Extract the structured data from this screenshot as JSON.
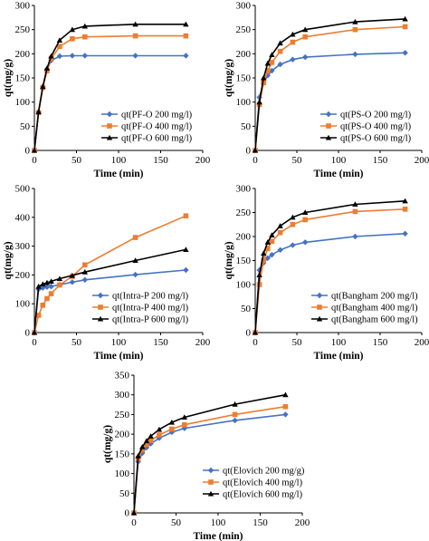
{
  "colors": {
    "series_200": "#4472C4",
    "series_400": "#ED7D31",
    "series_600": "#000000",
    "axis": "#000000",
    "grid": "none"
  },
  "chart_data": [
    {
      "type": "line",
      "xlabel": "Time (min)",
      "ylabel": "qt(mg/g)",
      "xlim": [
        0,
        200
      ],
      "ylim": [
        0,
        300
      ],
      "xticks": [
        "0",
        "50",
        "100",
        "150",
        "200"
      ],
      "yticks": [
        "0",
        "50",
        "100",
        "150",
        "200",
        "250",
        "300"
      ],
      "grid": false,
      "legend_position": "bottom-right",
      "series": [
        {
          "name": "qt(PF-O 200 mg/l)",
          "marker": "diamond",
          "x": [
            0,
            5,
            10,
            15,
            20,
            30,
            45,
            60,
            120,
            180
          ],
          "y": [
            0,
            80,
            132,
            168,
            186,
            195,
            196,
            196,
            196,
            196
          ]
        },
        {
          "name": "qt(PF-O 400 mg/l)",
          "marker": "square",
          "x": [
            0,
            5,
            10,
            15,
            20,
            30,
            45,
            60,
            120,
            180
          ],
          "y": [
            0,
            78,
            130,
            165,
            190,
            215,
            231,
            235,
            237,
            237
          ]
        },
        {
          "name": "qt(PF-O 600 mg/l)",
          "marker": "triangle",
          "x": [
            0,
            5,
            10,
            15,
            20,
            30,
            45,
            60,
            120,
            180
          ],
          "y": [
            0,
            80,
            132,
            170,
            195,
            228,
            250,
            257,
            261,
            261
          ]
        }
      ]
    },
    {
      "type": "line",
      "xlabel": "Time (min)",
      "ylabel": "qt(mg/g)",
      "xlim": [
        0,
        200
      ],
      "ylim": [
        0,
        300
      ],
      "xticks": [
        "0",
        "50",
        "100",
        "150",
        "200"
      ],
      "yticks": [
        "0",
        "50",
        "100",
        "150",
        "200",
        "250",
        "300"
      ],
      "grid": false,
      "legend_position": "bottom-right",
      "series": [
        {
          "name": "qt(PS-O 200 mg/l)",
          "marker": "diamond",
          "x": [
            0,
            5,
            10,
            15,
            20,
            30,
            45,
            60,
            120,
            180
          ],
          "y": [
            0,
            110,
            140,
            155,
            165,
            178,
            188,
            193,
            199,
            202
          ]
        },
        {
          "name": "qt(PS-O 400 mg/l)",
          "marker": "square",
          "x": [
            0,
            5,
            10,
            15,
            20,
            30,
            45,
            60,
            120,
            180
          ],
          "y": [
            0,
            95,
            140,
            165,
            182,
            205,
            224,
            235,
            250,
            256
          ]
        },
        {
          "name": "qt(PS-O 600 mg/l)",
          "marker": "triangle",
          "x": [
            0,
            5,
            10,
            15,
            20,
            30,
            45,
            60,
            120,
            180
          ],
          "y": [
            0,
            100,
            150,
            180,
            198,
            222,
            240,
            250,
            266,
            272
          ]
        }
      ]
    },
    {
      "type": "line",
      "xlabel": "Time (min)",
      "ylabel": "qt(mg/g)",
      "xlim": [
        0,
        200
      ],
      "ylim": [
        0,
        500
      ],
      "xticks": [
        "0",
        "50",
        "100",
        "150",
        "200"
      ],
      "yticks": [
        "0",
        "100",
        "200",
        "300",
        "400",
        "500"
      ],
      "grid": false,
      "legend_position": "bottom-right",
      "series": [
        {
          "name": "qt(Intra-P 200 mg/l)",
          "marker": "diamond",
          "x": [
            0,
            5,
            10,
            15,
            20,
            30,
            45,
            60,
            120,
            180
          ],
          "y": [
            0,
            150,
            155,
            158,
            160,
            166,
            175,
            183,
            201,
            217
          ]
        },
        {
          "name": "qt(Intra-P 400 mg/l)",
          "marker": "square",
          "x": [
            0,
            5,
            10,
            15,
            20,
            30,
            45,
            60,
            120,
            180
          ],
          "y": [
            0,
            60,
            95,
            118,
            135,
            165,
            195,
            235,
            330,
            405
          ]
        },
        {
          "name": "qt(Intra-P 600 mg/l)",
          "marker": "triangle",
          "x": [
            0,
            5,
            10,
            15,
            20,
            30,
            45,
            60,
            120,
            180
          ],
          "y": [
            0,
            160,
            168,
            173,
            178,
            187,
            198,
            210,
            250,
            288
          ]
        }
      ]
    },
    {
      "type": "line",
      "xlabel": "Time (min)",
      "ylabel": "qt(mg/g)",
      "xlim": [
        0,
        200
      ],
      "ylim": [
        0,
        300
      ],
      "xticks": [
        "0",
        "50",
        "100",
        "150",
        "200"
      ],
      "yticks": [
        "0",
        "50",
        "100",
        "150",
        "200",
        "250",
        "300"
      ],
      "grid": false,
      "legend_position": "bottom-right",
      "series": [
        {
          "name": "qt(Bangham 200 mg/l)",
          "marker": "diamond",
          "x": [
            0,
            5,
            10,
            15,
            20,
            30,
            45,
            60,
            120,
            180
          ],
          "y": [
            0,
            130,
            145,
            155,
            162,
            172,
            182,
            188,
            200,
            206
          ]
        },
        {
          "name": "qt(Bangham 400 mg/l)",
          "marker": "square",
          "x": [
            0,
            5,
            10,
            15,
            20,
            30,
            45,
            60,
            120,
            180
          ],
          "y": [
            0,
            100,
            150,
            175,
            190,
            208,
            225,
            235,
            252,
            257
          ]
        },
        {
          "name": "qt(Bangham 600 mg/l)",
          "marker": "triangle",
          "x": [
            0,
            5,
            10,
            15,
            20,
            30,
            45,
            60,
            120,
            180
          ],
          "y": [
            0,
            120,
            165,
            188,
            203,
            222,
            240,
            250,
            267,
            274
          ]
        }
      ]
    },
    {
      "type": "line",
      "xlabel": "Time (min)",
      "ylabel": "qt(mg/g)",
      "xlim": [
        0,
        200
      ],
      "ylim": [
        0,
        350
      ],
      "xticks": [
        "0",
        "50",
        "100",
        "150",
        "200"
      ],
      "yticks": [
        "0",
        "50",
        "100",
        "150",
        "200",
        "250",
        "300",
        "350"
      ],
      "grid": false,
      "legend_position": "bottom-right",
      "series": [
        {
          "name": "qt(Elovich 200 mg/g)",
          "marker": "diamond",
          "x": [
            0,
            5,
            10,
            15,
            20,
            30,
            45,
            60,
            120,
            180
          ],
          "y": [
            0,
            130,
            152,
            166,
            176,
            190,
            205,
            215,
            235,
            250
          ]
        },
        {
          "name": "qt(Elovich 400 mg/l)",
          "marker": "square",
          "x": [
            0,
            5,
            10,
            15,
            20,
            30,
            45,
            60,
            120,
            180
          ],
          "y": [
            0,
            138,
            160,
            174,
            184,
            198,
            213,
            224,
            250,
            270
          ]
        },
        {
          "name": "qt(Elovich 600 mg/l)",
          "marker": "triangle",
          "x": [
            0,
            5,
            10,
            15,
            20,
            30,
            45,
            60,
            120,
            180
          ],
          "y": [
            0,
            145,
            168,
            183,
            195,
            212,
            230,
            243,
            276,
            300
          ]
        }
      ]
    }
  ]
}
